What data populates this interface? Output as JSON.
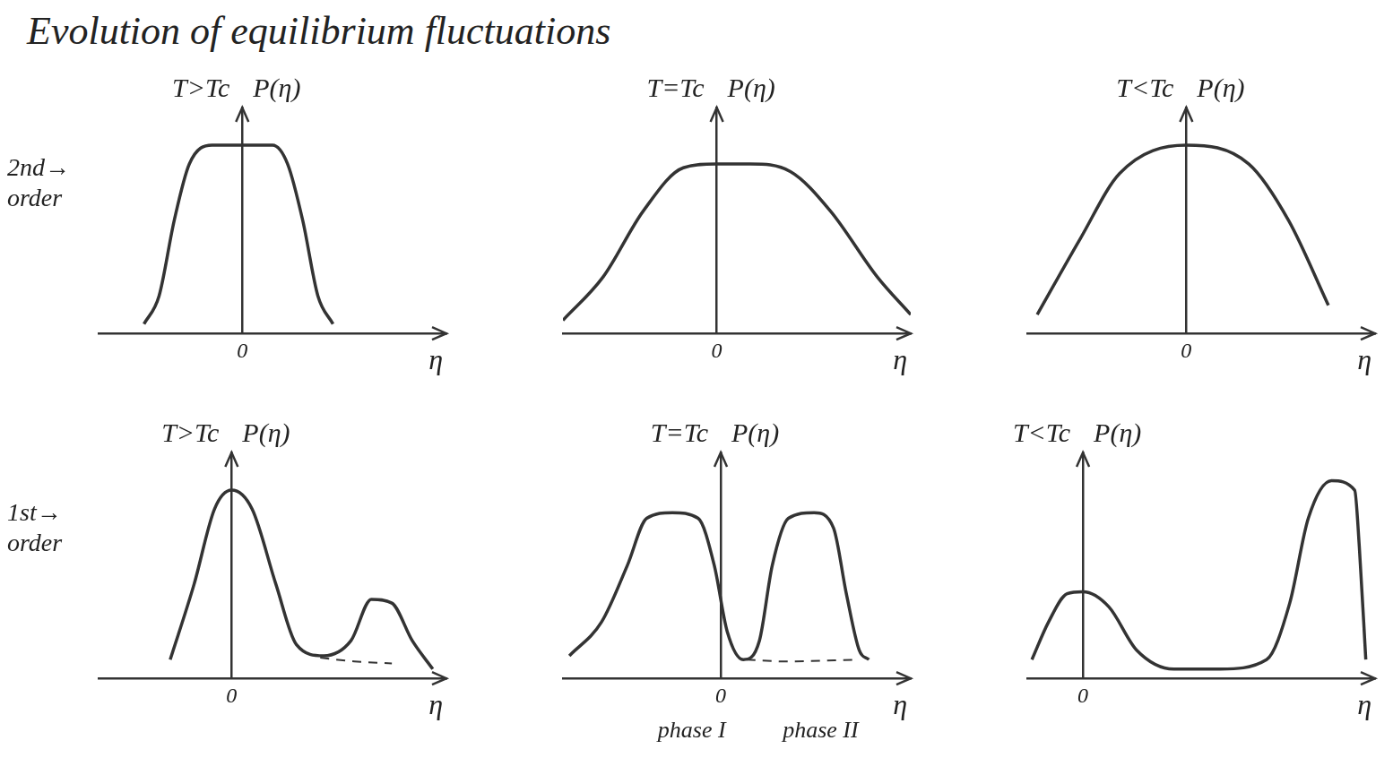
{
  "title": "Evolution of equilibrium fluctuations",
  "chart_data": [
    {
      "type": "line",
      "title": "T>Tc",
      "annotation": "2nd→ order",
      "x_label": "η",
      "y_label": "P(η)",
      "xlim": [
        -1.9,
        2.7
      ],
      "xticks": [
        0
      ],
      "ylim": [
        0,
        1.2
      ],
      "tick_labels": "x",
      "grid": false,
      "series": [
        {
          "color": "#333333",
          "line_style": "solid",
          "x": [
            -1.3,
            -1.1,
            -0.9,
            -0.7,
            -0.4,
            0,
            0.4,
            0.6,
            0.8,
            1.0,
            1.2
          ],
          "values": [
            0.05,
            0.2,
            0.6,
            0.9,
            1.0,
            1.0,
            1.0,
            0.9,
            0.6,
            0.2,
            0.05
          ]
        }
      ]
    },
    {
      "type": "line",
      "title": "T=Tc",
      "x_label": "η",
      "y_label": "P(η)",
      "xlim": [
        -2.3,
        2.9
      ],
      "xticks": [
        0
      ],
      "ylim": [
        0,
        1.2
      ],
      "tick_labels": "x",
      "grid": false,
      "series": [
        {
          "color": "#333333",
          "line_style": "solid",
          "x": [
            -2.3,
            -1.7,
            -1.1,
            -0.5,
            0,
            0.5,
            1.1,
            1.7,
            2.4,
            2.9
          ],
          "values": [
            0.07,
            0.3,
            0.65,
            0.88,
            0.9,
            0.9,
            0.86,
            0.65,
            0.3,
            0.1
          ]
        }
      ]
    },
    {
      "type": "line",
      "title": "T<Tc",
      "x_label": "η",
      "y_label": "P(η)",
      "xlim": [
        -1.6,
        1.9
      ],
      "xticks": [
        0
      ],
      "ylim": [
        0,
        1.2
      ],
      "tick_labels": "x",
      "grid": false,
      "series": [
        {
          "color": "#333333",
          "line_style": "solid",
          "x": [
            -1.5,
            -1.07,
            -0.67,
            0,
            0.63,
            1.03,
            1.43
          ],
          "values": [
            0.1,
            0.5,
            0.85,
            1.0,
            0.9,
            0.6,
            0.15
          ]
        }
      ]
    },
    {
      "type": "line",
      "title": "T>Tc",
      "annotation": "1st→ order",
      "x_label": "η",
      "y_label": "P(η)",
      "xlim": [
        -1.95,
        3.15
      ],
      "xticks": [
        0
      ],
      "ylim": [
        0,
        1.2
      ],
      "tick_labels": "x",
      "grid": false,
      "series": [
        {
          "color": "#333333",
          "line_style": "solid",
          "x": [
            -0.9,
            -0.55,
            -0.25,
            0,
            0.3,
            0.65,
            0.95,
            1.35,
            1.75,
            2.05,
            2.35,
            2.65,
            2.95
          ],
          "values": [
            0.1,
            0.5,
            0.9,
            1.0,
            0.9,
            0.5,
            0.18,
            0.12,
            0.2,
            0.42,
            0.4,
            0.2,
            0.05
          ]
        },
        {
          "color": "#333333",
          "line_style": "dashed",
          "x": [
            1.3,
            1.8,
            2.35
          ],
          "values": [
            0.11,
            0.09,
            0.08
          ]
        }
      ]
    },
    {
      "type": "line",
      "title": "T=Tc",
      "x_label": "η",
      "y_label": "P(η)",
      "xlim": [
        -2.45,
        2.95
      ],
      "xticks": [
        0
      ],
      "ylim": [
        0,
        1.2
      ],
      "tick_labels": "x",
      "grid": false,
      "annotations": [
        {
          "text": "phase I",
          "x": -0.45
        },
        {
          "text": "phase II",
          "x": 1.55
        }
      ],
      "series": [
        {
          "color": "#333333",
          "line_style": "solid",
          "x": [
            -2.35,
            -1.85,
            -1.45,
            -1.15,
            -0.75,
            -0.35,
            -0.1,
            0.1,
            0.35,
            0.6,
            0.8,
            1.05,
            1.45,
            1.75,
            1.95,
            2.15,
            2.3
          ],
          "values": [
            0.12,
            0.3,
            0.6,
            0.85,
            0.88,
            0.85,
            0.6,
            0.25,
            0.1,
            0.2,
            0.6,
            0.85,
            0.88,
            0.8,
            0.45,
            0.15,
            0.1
          ]
        },
        {
          "color": "#333333",
          "line_style": "dashed",
          "x": [
            0.4,
            1.0,
            2.15
          ],
          "values": [
            0.1,
            0.09,
            0.1
          ]
        }
      ]
    },
    {
      "type": "line",
      "title": "T<Tc",
      "x_label": "η",
      "y_label": "P(η)",
      "xlim": [
        -0.6,
        3.15
      ],
      "xticks": [
        0
      ],
      "ylim": [
        0,
        1.2
      ],
      "tick_labels": "x",
      "grid": false,
      "series": [
        {
          "color": "#333333",
          "line_style": "solid",
          "x": [
            -0.55,
            -0.37,
            -0.17,
            0,
            0.28,
            0.58,
            0.98,
            1.48,
            1.98,
            2.23,
            2.43,
            2.68,
            2.93,
            2.98,
            3.05
          ],
          "values": [
            0.1,
            0.3,
            0.45,
            0.46,
            0.38,
            0.15,
            0.05,
            0.05,
            0.1,
            0.4,
            0.85,
            1.05,
            1.0,
            0.7,
            0.1
          ]
        }
      ]
    }
  ]
}
